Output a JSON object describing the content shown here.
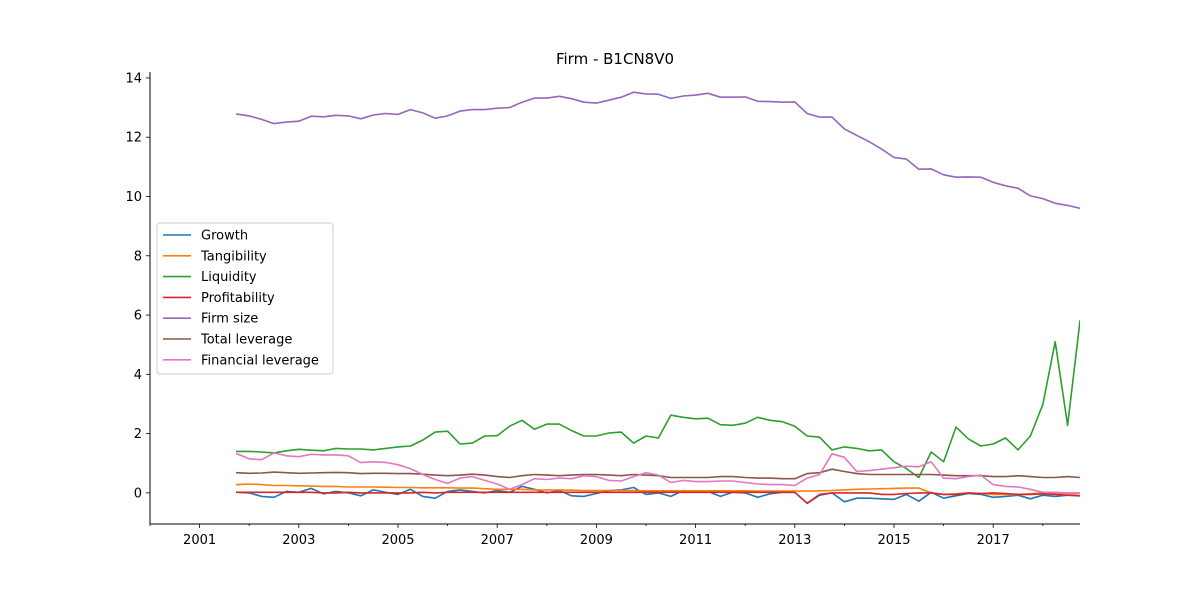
{
  "chart_data": {
    "type": "line",
    "title": "Firm - B1CN8V0",
    "xlabel": "",
    "ylabel": "",
    "x_tick_labels": [
      "2001",
      "2003",
      "2005",
      "2007",
      "2009",
      "2011",
      "2013",
      "2015",
      "2017"
    ],
    "x_range": [
      2000.0,
      2018.75
    ],
    "y_tick_labels": [
      "0",
      "2",
      "4",
      "6",
      "8",
      "10",
      "12",
      "14"
    ],
    "y_range": [
      -1.05,
      14.2
    ],
    "legend_position": "center-left",
    "grid": false,
    "x": [
      2001.75,
      2002.0,
      2002.25,
      2002.5,
      2002.75,
      2003.0,
      2003.25,
      2003.5,
      2003.75,
      2004.0,
      2004.25,
      2004.5,
      2004.75,
      2005.0,
      2005.25,
      2005.5,
      2005.75,
      2006.0,
      2006.25,
      2006.5,
      2006.75,
      2007.0,
      2007.25,
      2007.5,
      2007.75,
      2008.0,
      2008.25,
      2008.5,
      2008.75,
      2009.0,
      2009.25,
      2009.5,
      2009.75,
      2010.0,
      2010.25,
      2010.5,
      2010.75,
      2011.0,
      2011.25,
      2011.5,
      2011.75,
      2012.0,
      2012.25,
      2012.5,
      2012.75,
      2013.0,
      2013.25,
      2013.5,
      2013.75,
      2014.0,
      2014.25,
      2014.5,
      2014.75,
      2015.0,
      2015.25,
      2015.5,
      2015.75,
      2016.0,
      2016.25,
      2016.5,
      2016.75,
      2017.0,
      2017.25,
      2017.5,
      2017.75,
      2018.0,
      2018.25,
      2018.5,
      2018.75
    ],
    "series": [
      {
        "name": "Growth",
        "color": "#1f77b4",
        "values": [
          0.02,
          0.0,
          -0.12,
          -0.15,
          0.05,
          0.02,
          0.15,
          -0.03,
          0.05,
          0.0,
          -0.1,
          0.1,
          0.02,
          -0.05,
          0.12,
          -0.12,
          -0.18,
          0.05,
          0.1,
          0.05,
          0.0,
          0.08,
          0.02,
          0.22,
          0.12,
          0.0,
          0.08,
          -0.1,
          -0.12,
          -0.02,
          0.08,
          0.1,
          0.18,
          -0.05,
          0.0,
          -0.12,
          0.08,
          0.02,
          0.05,
          -0.12,
          0.02,
          0.0,
          -0.15,
          -0.03,
          0.02,
          0.02,
          -0.35,
          -0.08,
          0.0,
          -0.3,
          -0.18,
          -0.18,
          -0.2,
          -0.22,
          -0.05,
          -0.28,
          0.02,
          -0.18,
          -0.1,
          -0.02,
          -0.05,
          -0.15,
          -0.12,
          -0.08,
          -0.2,
          -0.08,
          -0.12,
          -0.08,
          -0.1
        ]
      },
      {
        "name": "Tangibility",
        "color": "#ff7f0e",
        "values": [
          0.28,
          0.3,
          0.28,
          0.25,
          0.25,
          0.24,
          0.23,
          0.22,
          0.22,
          0.2,
          0.2,
          0.2,
          0.19,
          0.18,
          0.18,
          0.17,
          0.17,
          0.17,
          0.16,
          0.16,
          0.14,
          0.12,
          0.12,
          0.12,
          0.1,
          0.1,
          0.1,
          0.09,
          0.08,
          0.08,
          0.08,
          0.08,
          0.08,
          0.07,
          0.07,
          0.07,
          0.07,
          0.07,
          0.07,
          0.07,
          0.07,
          0.07,
          0.06,
          0.06,
          0.06,
          0.06,
          0.06,
          0.07,
          0.08,
          0.1,
          0.12,
          0.13,
          0.14,
          0.15,
          0.16,
          0.16,
          0.0,
          -0.05,
          -0.03,
          0.0,
          -0.02,
          -0.05,
          -0.05,
          -0.05,
          -0.03,
          0.0,
          0.0,
          -0.02,
          -0.02
        ]
      },
      {
        "name": "Liquidity",
        "color": "#2ca02c",
        "values": [
          1.4,
          1.4,
          1.38,
          1.35,
          1.42,
          1.47,
          1.44,
          1.42,
          1.5,
          1.48,
          1.48,
          1.45,
          1.5,
          1.55,
          1.58,
          1.78,
          2.05,
          2.08,
          1.65,
          1.68,
          1.92,
          1.93,
          2.25,
          2.45,
          2.15,
          2.32,
          2.32,
          2.1,
          1.92,
          1.92,
          2.02,
          2.05,
          1.68,
          1.92,
          1.85,
          2.62,
          2.55,
          2.5,
          2.52,
          2.3,
          2.28,
          2.35,
          2.55,
          2.45,
          2.4,
          2.25,
          1.92,
          1.88,
          1.45,
          1.55,
          1.5,
          1.42,
          1.45,
          1.05,
          0.82,
          0.52,
          1.38,
          1.05,
          2.22,
          1.82,
          1.58,
          1.65,
          1.85,
          1.45,
          1.92,
          2.98,
          5.1,
          2.28,
          5.8
        ]
      },
      {
        "name": "Profitability",
        "color": "#d62728",
        "values": [
          0.02,
          0.02,
          0.02,
          0.02,
          0.02,
          0.02,
          0.02,
          0.0,
          0.0,
          0.02,
          0.0,
          0.0,
          0.0,
          0.0,
          0.0,
          0.02,
          0.0,
          0.02,
          0.02,
          0.02,
          0.02,
          0.02,
          0.02,
          0.02,
          0.02,
          0.02,
          0.02,
          0.02,
          0.02,
          0.02,
          0.02,
          0.02,
          0.02,
          0.02,
          0.02,
          0.02,
          0.02,
          0.02,
          0.02,
          0.02,
          0.02,
          0.02,
          0.02,
          0.02,
          0.02,
          0.02,
          -0.35,
          -0.05,
          0.0,
          0.0,
          0.0,
          0.0,
          -0.05,
          -0.05,
          -0.02,
          0.0,
          0.0,
          -0.05,
          -0.05,
          0.0,
          -0.02,
          0.0,
          -0.02,
          -0.05,
          -0.05,
          -0.03,
          -0.05,
          -0.08,
          -0.1
        ]
      },
      {
        "name": "Firm size",
        "color": "#9467bd",
        "values": [
          12.78,
          12.72,
          12.6,
          12.46,
          12.51,
          12.54,
          12.71,
          12.69,
          12.74,
          12.72,
          12.62,
          12.75,
          12.8,
          12.77,
          12.93,
          12.82,
          12.64,
          12.72,
          12.88,
          12.93,
          12.93,
          12.98,
          13.0,
          13.18,
          13.32,
          13.32,
          13.38,
          13.3,
          13.18,
          13.15,
          13.25,
          13.35,
          13.52,
          13.46,
          13.45,
          13.31,
          13.39,
          13.42,
          13.48,
          13.35,
          13.35,
          13.36,
          13.21,
          13.2,
          13.18,
          13.19,
          12.8,
          12.68,
          12.68,
          12.28,
          12.06,
          11.85,
          11.6,
          11.32,
          11.26,
          10.92,
          10.93,
          10.73,
          10.65,
          10.66,
          10.65,
          10.48,
          10.36,
          10.28,
          10.02,
          9.93,
          9.77,
          9.7,
          9.6
        ]
      },
      {
        "name": "Total leverage",
        "color": "#8c564b",
        "values": [
          0.68,
          0.66,
          0.67,
          0.7,
          0.68,
          0.66,
          0.67,
          0.68,
          0.69,
          0.68,
          0.65,
          0.66,
          0.66,
          0.65,
          0.65,
          0.63,
          0.6,
          0.58,
          0.6,
          0.63,
          0.6,
          0.55,
          0.52,
          0.58,
          0.62,
          0.6,
          0.58,
          0.6,
          0.62,
          0.62,
          0.6,
          0.58,
          0.62,
          0.6,
          0.58,
          0.52,
          0.52,
          0.52,
          0.52,
          0.55,
          0.55,
          0.52,
          0.5,
          0.5,
          0.48,
          0.48,
          0.65,
          0.68,
          0.8,
          0.72,
          0.65,
          0.62,
          0.62,
          0.62,
          0.62,
          0.62,
          0.62,
          0.6,
          0.58,
          0.58,
          0.58,
          0.55,
          0.55,
          0.58,
          0.55,
          0.52,
          0.52,
          0.55,
          0.52
        ]
      },
      {
        "name": "Financial leverage",
        "color": "#e377c2",
        "values": [
          1.32,
          1.15,
          1.12,
          1.35,
          1.25,
          1.22,
          1.3,
          1.28,
          1.28,
          1.25,
          1.02,
          1.05,
          1.03,
          0.95,
          0.82,
          0.62,
          0.45,
          0.32,
          0.5,
          0.55,
          0.42,
          0.3,
          0.12,
          0.28,
          0.48,
          0.45,
          0.5,
          0.48,
          0.58,
          0.55,
          0.42,
          0.4,
          0.55,
          0.68,
          0.6,
          0.35,
          0.42,
          0.38,
          0.38,
          0.4,
          0.4,
          0.35,
          0.3,
          0.28,
          0.28,
          0.25,
          0.5,
          0.62,
          1.32,
          1.2,
          0.72,
          0.75,
          0.8,
          0.85,
          0.9,
          0.88,
          1.05,
          0.5,
          0.48,
          0.55,
          0.6,
          0.28,
          0.22,
          0.2,
          0.12,
          0.02,
          0.02,
          0.0,
          0.0
        ]
      }
    ]
  }
}
